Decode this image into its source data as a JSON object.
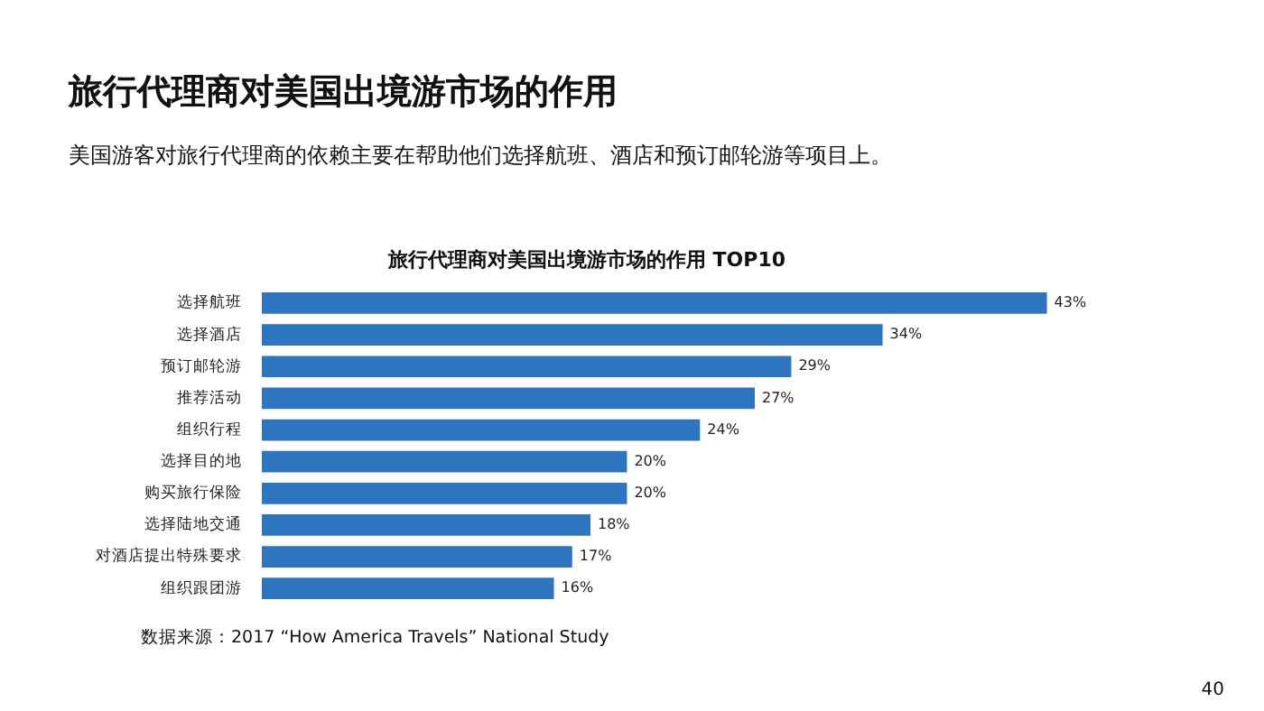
{
  "chart_data": {
    "type": "bar",
    "orientation": "horizontal",
    "title": "旅行代理商对美国出境游市场的作用 TOP10",
    "subtitle": "美国游客对旅行代理商的依赖主要在帮助他们选择航班、酒店和预订邮轮游等项目上。",
    "categories": [
      "选择航班",
      "选择酒店",
      "预订邮轮游",
      "推荐活动",
      "组织行程",
      "选择目的地",
      "购买旅行保险",
      "选择陆地交通",
      "对酒店提出特殊要求",
      "组织跟团游"
    ],
    "values": [
      43,
      34,
      29,
      27,
      24,
      20,
      20,
      18,
      17,
      16
    ],
    "value_labels": [
      "43%",
      "34%",
      "29%",
      "27%",
      "24%",
      "20%",
      "20%",
      "18%",
      "17%",
      "16%"
    ],
    "color": "#2e75c0",
    "annotations": [
      "旅行代理商对美国出境游市场的作用",
      "数据来源：2017 “How America Travels” National Study",
      "40"
    ]
  }
}
